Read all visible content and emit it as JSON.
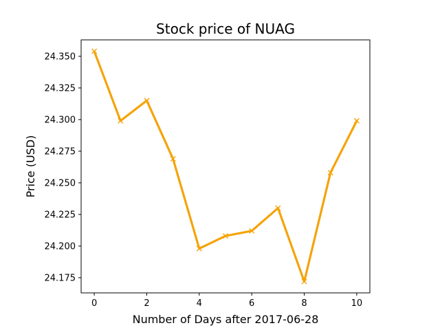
{
  "chart_data": {
    "type": "line",
    "title": "Stock price of NUAG",
    "xlabel": "Number of Days after 2017-06-28",
    "ylabel": "Price (USD)",
    "xlim": [
      -0.5,
      10.5
    ],
    "ylim": [
      24.163,
      24.363
    ],
    "xticks": [
      0,
      2,
      4,
      6,
      8,
      10
    ],
    "xtick_labels": [
      "0",
      "2",
      "4",
      "6",
      "8",
      "10"
    ],
    "yticks": [
      24.175,
      24.2,
      24.225,
      24.25,
      24.275,
      24.3,
      24.325,
      24.35
    ],
    "ytick_labels": [
      "24.175",
      "24.200",
      "24.225",
      "24.250",
      "24.275",
      "24.300",
      "24.325",
      "24.350"
    ],
    "grid": false,
    "series": [
      {
        "color": "#f5a30a",
        "marker": "x",
        "x": [
          0,
          1,
          2,
          3,
          4,
          5,
          6,
          7,
          8,
          9,
          10
        ],
        "y": [
          24.354,
          24.299,
          24.315,
          24.269,
          24.198,
          24.208,
          24.212,
          24.23,
          24.172,
          24.258,
          24.299
        ]
      }
    ]
  }
}
